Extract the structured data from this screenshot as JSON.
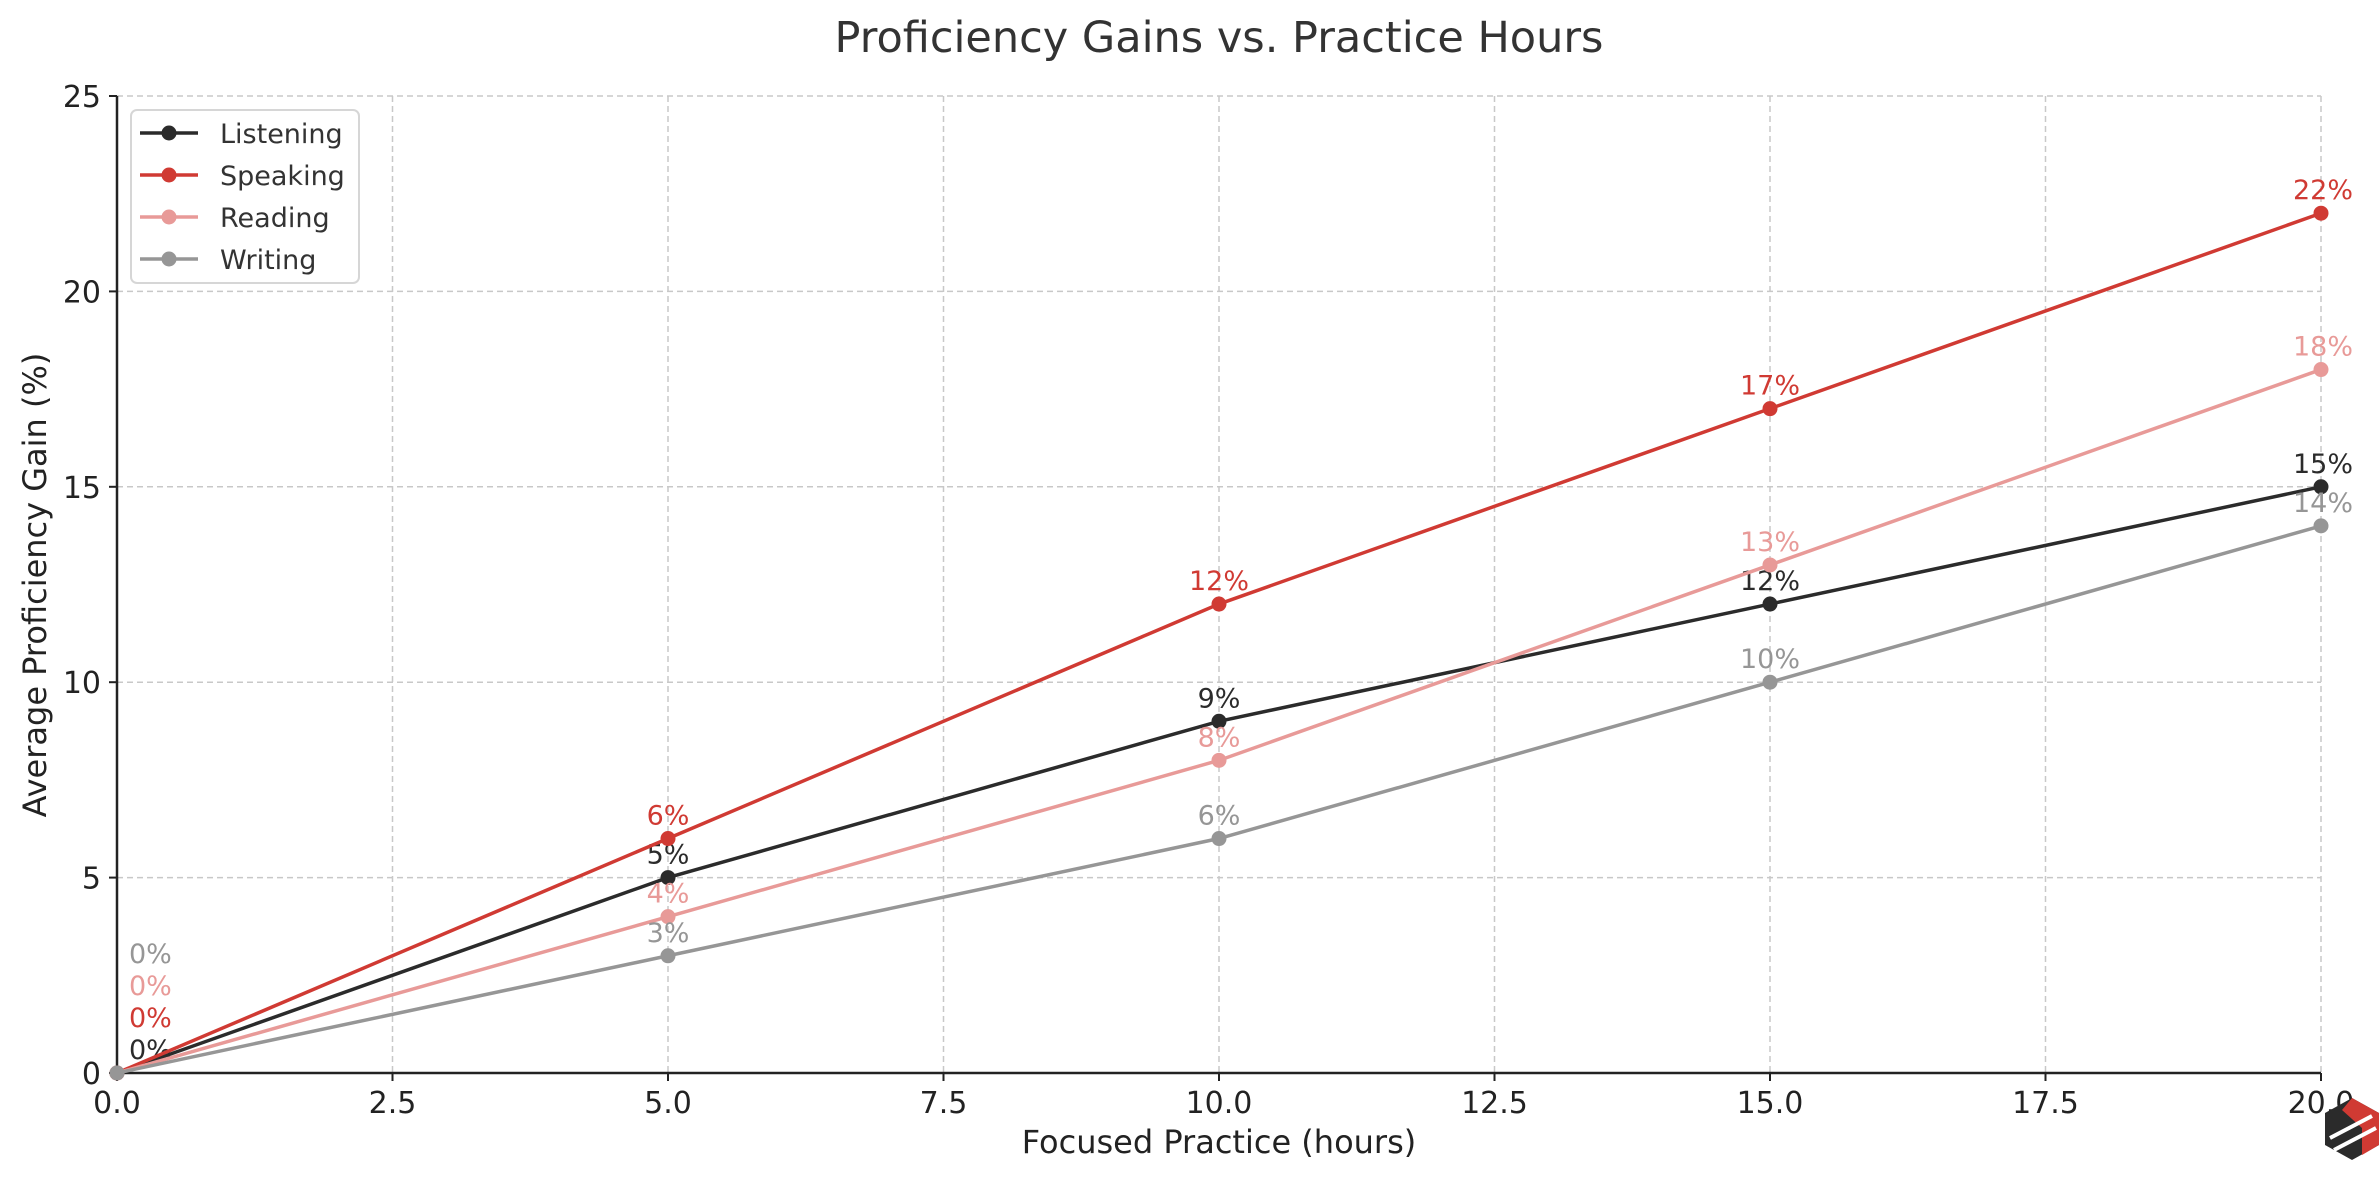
{
  "chart_data": {
    "type": "line",
    "title": "Proficiency Gains vs. Practice Hours",
    "xlabel": "Focused Practice (hours)",
    "ylabel": "Average Proficiency Gain (%)",
    "xlim": [
      0,
      20
    ],
    "ylim": [
      0,
      25
    ],
    "x_ticks": [
      "0.0",
      "2.5",
      "5.0",
      "7.5",
      "10.0",
      "12.5",
      "15.0",
      "17.5",
      "20.0"
    ],
    "y_ticks": [
      "0",
      "5",
      "10",
      "15",
      "20",
      "25"
    ],
    "grid": true,
    "legend_position": "top-left",
    "x": [
      0,
      5,
      10,
      15,
      20
    ],
    "series": [
      {
        "name": "Listening",
        "color": "#2b2b2b",
        "values": [
          0,
          5,
          9,
          12,
          15
        ]
      },
      {
        "name": "Speaking",
        "color": "#d03a33",
        "values": [
          0,
          6,
          12,
          17,
          22
        ]
      },
      {
        "name": "Reading",
        "color": "#e89a98",
        "values": [
          0,
          4,
          8,
          13,
          18
        ]
      },
      {
        "name": "Writing",
        "color": "#969696",
        "values": [
          0,
          3,
          6,
          10,
          14
        ]
      }
    ],
    "data_label_suffix": "%"
  },
  "logo": {
    "icon": "hexagon-logo-icon",
    "colors": [
      "#2b2b2b",
      "#d03a33"
    ]
  }
}
